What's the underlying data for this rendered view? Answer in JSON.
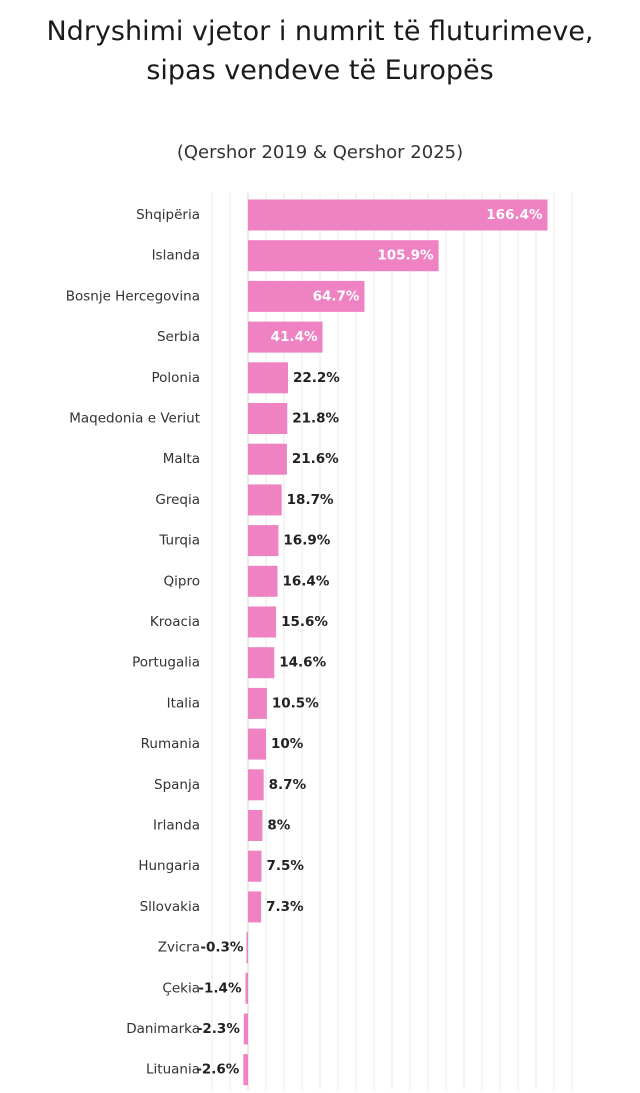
{
  "chart_data": {
    "type": "bar",
    "orientation": "horizontal",
    "title": "Ndryshimi vjetor i numrit të fluturimeve, sipas vendeve të Europës",
    "subtitle": "(Qershor 2019 & Qershor 2025)",
    "categories": [
      "Shqipëria",
      "Islanda",
      "Bosnje Hercegovina",
      "Serbia",
      "Polonia",
      "Maqedonia e Veriut",
      "Malta",
      "Greqia",
      "Turqia",
      "Qipro",
      "Kroacia",
      "Portugalia",
      "Italia",
      "Rumania",
      "Spanja",
      "Irlanda",
      "Hungaria",
      "Sllovakia",
      "Zvicra",
      "Çekia",
      "Danimarka",
      "Lituania"
    ],
    "values": [
      166.4,
      105.9,
      64.7,
      41.4,
      22.2,
      21.8,
      21.6,
      18.7,
      16.9,
      16.4,
      15.6,
      14.6,
      10.5,
      10,
      8.7,
      8,
      7.5,
      7.3,
      -0.3,
      -1.4,
      -2.3,
      -2.6
    ],
    "value_labels": [
      "166.4%",
      "105.9%",
      "64.7%",
      "41.4%",
      "22.2%",
      "21.8%",
      "21.6%",
      "18.7%",
      "16.9%",
      "16.4%",
      "15.6%",
      "14.6%",
      "10.5%",
      "10%",
      "8.7%",
      "8%",
      "7.5%",
      "7.3%",
      "-0.3%",
      "-1.4%",
      "-2.3%",
      "-2.6%"
    ],
    "unit": "%",
    "xlim": [
      -20,
      180
    ],
    "grid": true,
    "legend": "none",
    "bar_color": "#ee82c2",
    "label_inside_threshold": 40
  }
}
